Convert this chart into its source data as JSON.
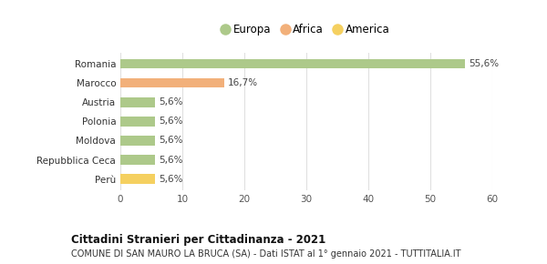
{
  "categories": [
    "Romania",
    "Marocco",
    "Austria",
    "Polonia",
    "Moldova",
    "Repubblica Ceca",
    "Perù"
  ],
  "values": [
    55.6,
    16.7,
    5.6,
    5.6,
    5.6,
    5.6,
    5.6
  ],
  "labels": [
    "55,6%",
    "16,7%",
    "5,6%",
    "5,6%",
    "5,6%",
    "5,6%",
    "5,6%"
  ],
  "colors": [
    "#adc98a",
    "#f2b07a",
    "#adc98a",
    "#adc98a",
    "#adc98a",
    "#adc98a",
    "#f5d060"
  ],
  "legend": [
    {
      "label": "Europa",
      "color": "#adc98a"
    },
    {
      "label": "Africa",
      "color": "#f2b07a"
    },
    {
      "label": "America",
      "color": "#f5d060"
    }
  ],
  "xlim": [
    0,
    60
  ],
  "xticks": [
    0,
    10,
    20,
    30,
    40,
    50,
    60
  ],
  "title": "Cittadini Stranieri per Cittadinanza - 2021",
  "subtitle": "COMUNE DI SAN MAURO LA BRUCA (SA) - Dati ISTAT al 1° gennaio 2021 - TUTTITALIA.IT",
  "background_color": "#ffffff",
  "grid_color": "#e0e0e0"
}
